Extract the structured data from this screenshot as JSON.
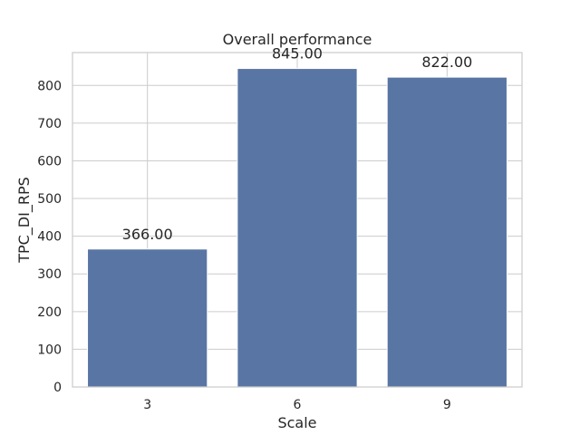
{
  "chart_data": {
    "type": "bar",
    "title": "Overall performance",
    "xlabel": "Scale",
    "ylabel": "TPC_DI_RPS",
    "categories": [
      "3",
      "6",
      "9"
    ],
    "values": [
      366,
      845,
      822
    ],
    "value_labels": [
      "366.00",
      "845.00",
      "822.00"
    ],
    "yticks": [
      0,
      100,
      200,
      300,
      400,
      500,
      600,
      700,
      800
    ],
    "ylim": [
      0,
      887.25
    ],
    "grid": true,
    "bar_color": "#5975a4",
    "grid_color": "#cccccc",
    "axes_edge_color": "#cccccc"
  }
}
